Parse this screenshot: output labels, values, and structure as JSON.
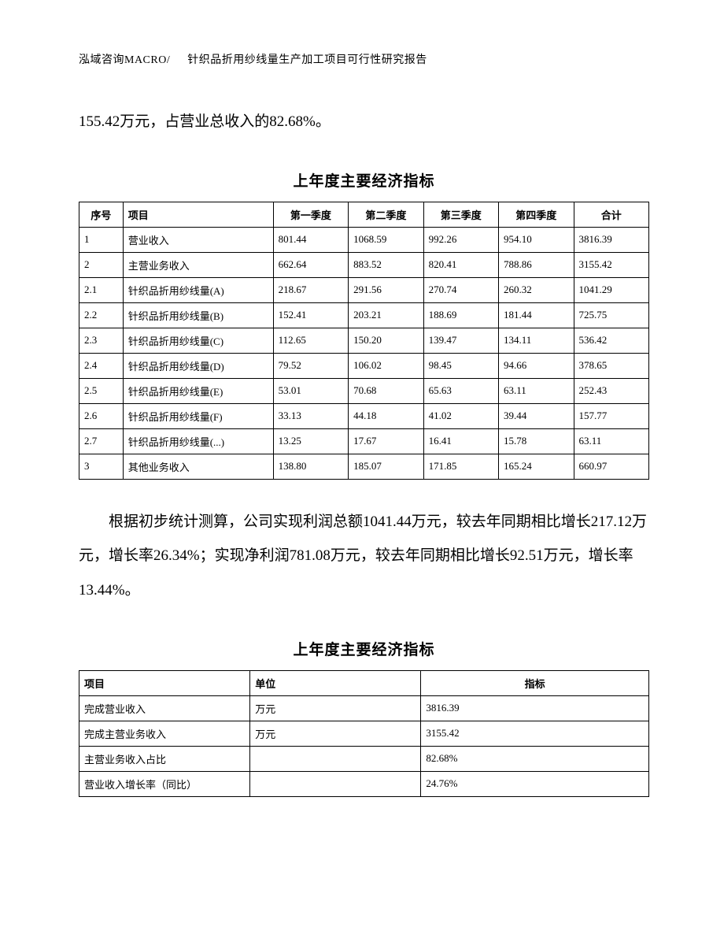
{
  "header": {
    "company": "泓域咨询MACRO/",
    "title": "针织品折用纱线量生产加工项目可行性研究报告"
  },
  "paragraph1": "155.42万元，占营业总收入的82.68%。",
  "table1": {
    "title": "上年度主要经济指标",
    "headers": {
      "seq": "序号",
      "item": "项目",
      "q1": "第一季度",
      "q2": "第二季度",
      "q3": "第三季度",
      "q4": "第四季度",
      "total": "合计"
    },
    "rows": [
      {
        "seq": "1",
        "item": "营业收入",
        "q1": "801.44",
        "q2": "1068.59",
        "q3": "992.26",
        "q4": "954.10",
        "total": "3816.39"
      },
      {
        "seq": "2",
        "item": "主营业务收入",
        "q1": "662.64",
        "q2": "883.52",
        "q3": "820.41",
        "q4": "788.86",
        "total": "3155.42"
      },
      {
        "seq": "2.1",
        "item": "针织品折用纱线量(A)",
        "q1": "218.67",
        "q2": "291.56",
        "q3": "270.74",
        "q4": "260.32",
        "total": "1041.29"
      },
      {
        "seq": "2.2",
        "item": "针织品折用纱线量(B)",
        "q1": "152.41",
        "q2": "203.21",
        "q3": "188.69",
        "q4": "181.44",
        "total": "725.75"
      },
      {
        "seq": "2.3",
        "item": "针织品折用纱线量(C)",
        "q1": "112.65",
        "q2": "150.20",
        "q3": "139.47",
        "q4": "134.11",
        "total": "536.42"
      },
      {
        "seq": "2.4",
        "item": "针织品折用纱线量(D)",
        "q1": "79.52",
        "q2": "106.02",
        "q3": "98.45",
        "q4": "94.66",
        "total": "378.65"
      },
      {
        "seq": "2.5",
        "item": "针织品折用纱线量(E)",
        "q1": "53.01",
        "q2": "70.68",
        "q3": "65.63",
        "q4": "63.11",
        "total": "252.43"
      },
      {
        "seq": "2.6",
        "item": "针织品折用纱线量(F)",
        "q1": "33.13",
        "q2": "44.18",
        "q3": "41.02",
        "q4": "39.44",
        "total": "157.77"
      },
      {
        "seq": "2.7",
        "item": "针织品折用纱线量(...)",
        "q1": "13.25",
        "q2": "17.67",
        "q3": "16.41",
        "q4": "15.78",
        "total": "63.11"
      },
      {
        "seq": "3",
        "item": "其他业务收入",
        "q1": "138.80",
        "q2": "185.07",
        "q3": "171.85",
        "q4": "165.24",
        "total": "660.97"
      }
    ]
  },
  "paragraph2": "根据初步统计测算，公司实现利润总额1041.44万元，较去年同期相比增长217.12万元，增长率26.34%；实现净利润781.08万元，较去年同期相比增长92.51万元，增长率13.44%。",
  "table2": {
    "title": "上年度主要经济指标",
    "headers": {
      "item": "项目",
      "unit": "单位",
      "indicator": "指标"
    },
    "rows": [
      {
        "item": "完成营业收入",
        "unit": "万元",
        "indicator": "3816.39"
      },
      {
        "item": "完成主营业务收入",
        "unit": "万元",
        "indicator": "3155.42"
      },
      {
        "item": "主营业务收入占比",
        "unit": "",
        "indicator": "82.68%"
      },
      {
        "item": "营业收入增长率（同比）",
        "unit": "",
        "indicator": "24.76%"
      }
    ]
  },
  "style": {
    "page_bg": "#ffffff",
    "text_color": "#000000",
    "border_color": "#000000",
    "header_fontsize": 14,
    "body_fontsize": 19,
    "table_fontsize": 13,
    "table_title_fontsize": 19,
    "line_height": 2.3
  }
}
